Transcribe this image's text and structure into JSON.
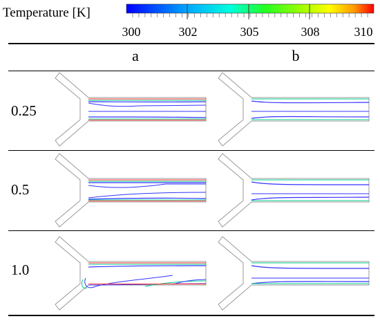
{
  "legend": {
    "title": "Temperature [K]",
    "ticks": [
      "300",
      "302",
      "305",
      "308",
      "310"
    ],
    "colors": [
      "#0000ff",
      "#00b3ff",
      "#00ffff",
      "#00ff66",
      "#66ff00",
      "#ffff00",
      "#ffaa00",
      "#ff0000"
    ]
  },
  "columns": [
    "a",
    "b"
  ],
  "rows": [
    {
      "label": "0.25"
    },
    {
      "label": "0.5"
    },
    {
      "label": "1.0"
    }
  ]
}
